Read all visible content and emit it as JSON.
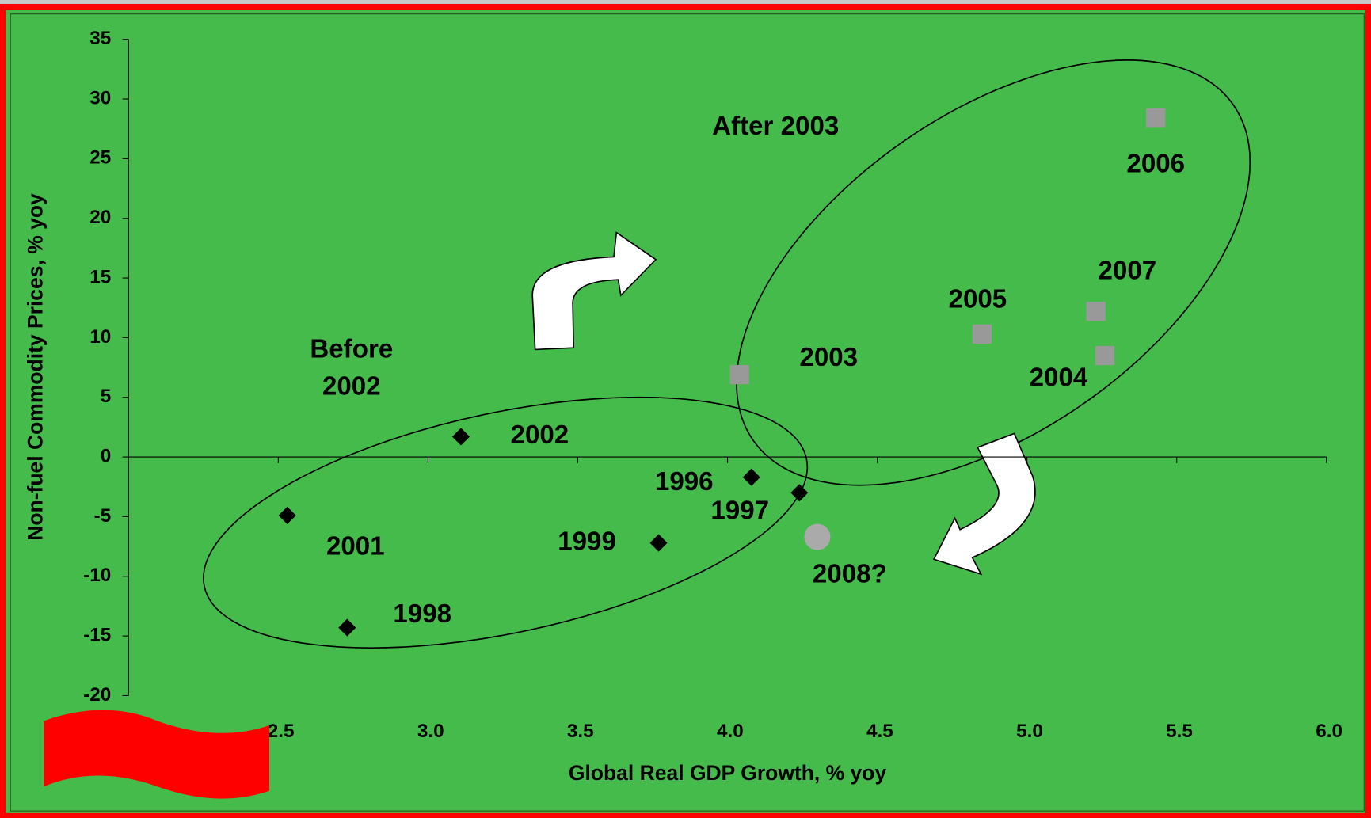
{
  "chart_data": {
    "type": "scatter",
    "xlabel": "Global Real GDP Growth, % yoy",
    "ylabel": "Non-fuel Commodity Prices, % yoy",
    "annotations": [
      "Before",
      "2002",
      "After 2003"
    ],
    "xlim": [
      2,
      6
    ],
    "xticks": [
      2.5,
      {
        "value": 3,
        "label": "3.0"
      },
      3.5,
      {
        "value": 4,
        "label": "4.0"
      },
      4.5,
      {
        "value": 5,
        "label": "5.0"
      },
      5.5,
      {
        "value": 6,
        "label": "6.0"
      }
    ],
    "ylim": [
      -20,
      35
    ],
    "yticks": [
      -20,
      -15,
      -10,
      -5,
      0,
      5,
      10,
      15,
      20,
      25,
      30,
      35
    ],
    "series": [
      {
        "color": "#000000",
        "marker": "diamond",
        "labels": [
          "1996",
          "1997",
          "1998",
          "1999",
          "2001",
          "2002"
        ],
        "x": [
          4.08,
          4.24,
          2.73,
          3.77,
          2.53,
          3.11
        ],
        "values": [
          -1.7,
          -3.0,
          -14.3,
          -7.2,
          -4.9,
          1.7
        ]
      },
      {
        "color": "#999999",
        "marker": "square",
        "labels": [
          "2003",
          "2004",
          "2005",
          "2006",
          "2007"
        ],
        "x": [
          4.04,
          5.26,
          4.85,
          5.43,
          5.23
        ],
        "values": [
          6.9,
          8.5,
          10.3,
          28.4,
          12.2
        ]
      },
      {
        "color": "#aaaaaa",
        "marker": "circle",
        "labels": [
          "2008?"
        ],
        "x": [
          4.3
        ],
        "values": [
          -6.7
        ]
      }
    ]
  }
}
